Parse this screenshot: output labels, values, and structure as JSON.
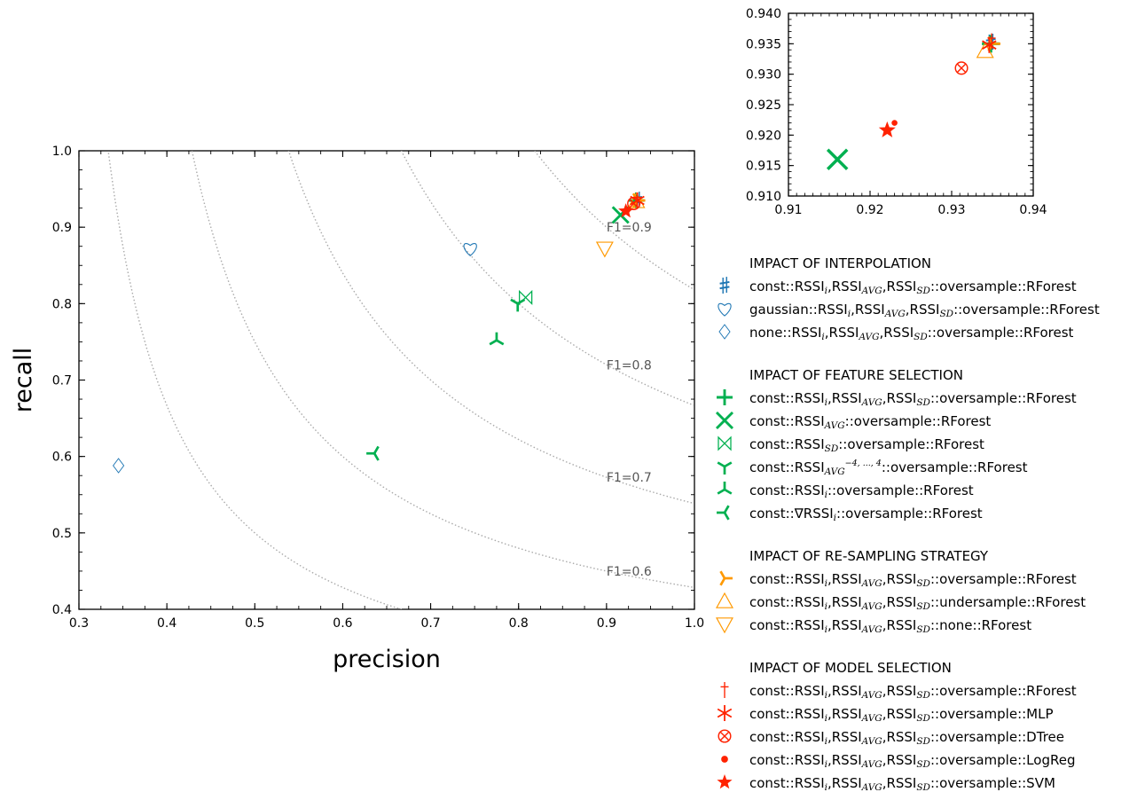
{
  "colors": {
    "interpolation": "#1f77b4",
    "feature": "#00b050",
    "resampling": "#ff9900",
    "model": "#ff2200",
    "contour": "#aaaaaa",
    "axis": "#000000"
  },
  "chart_data": [
    {
      "type": "scatter",
      "title": "",
      "xlabel": "precision",
      "ylabel": "recall",
      "xlim": [
        0.3,
        1.0
      ],
      "ylim": [
        0.4,
        1.0
      ],
      "xticks": [
        "0.3",
        "0.4",
        "0.5",
        "0.6",
        "0.7",
        "0.8",
        "0.9",
        "1.0"
      ],
      "yticks": [
        "0.4",
        "0.5",
        "0.6",
        "0.7",
        "0.8",
        "0.9",
        "1.0"
      ],
      "grid": false,
      "f1_contours": [
        {
          "f1": 0.6,
          "label": "F1=0.6"
        },
        {
          "f1": 0.7,
          "label": "F1=0.7"
        },
        {
          "f1": 0.8,
          "label": "F1=0.8"
        },
        {
          "f1": 0.9,
          "label": "F1=0.9"
        }
      ],
      "f1_extra_contours": [
        0.5
      ],
      "series": [
        {
          "group": "interpolation",
          "marker": "sharp",
          "x": 0.935,
          "y": 0.935
        },
        {
          "group": "interpolation",
          "marker": "heart",
          "x": 0.745,
          "y": 0.872
        },
        {
          "group": "interpolation",
          "marker": "diamond",
          "x": 0.345,
          "y": 0.588
        },
        {
          "group": "feature",
          "marker": "plus",
          "x": 0.934,
          "y": 0.935
        },
        {
          "group": "feature",
          "marker": "x",
          "x": 0.916,
          "y": 0.916
        },
        {
          "group": "feature",
          "marker": "bowtie",
          "x": 0.808,
          "y": 0.808
        },
        {
          "group": "feature",
          "marker": "tri_down",
          "x": 0.799,
          "y": 0.8
        },
        {
          "group": "feature",
          "marker": "tri_up",
          "x": 0.775,
          "y": 0.752
        },
        {
          "group": "feature",
          "marker": "tri_left",
          "x": 0.636,
          "y": 0.604
        },
        {
          "group": "resampling",
          "marker": "tri_right",
          "x": 0.935,
          "y": 0.935
        },
        {
          "group": "resampling",
          "marker": "triangle_up",
          "x": 0.934,
          "y": 0.934
        },
        {
          "group": "resampling",
          "marker": "triangle_down",
          "x": 0.898,
          "y": 0.872
        },
        {
          "group": "model",
          "marker": "dagger",
          "x": 0.935,
          "y": 0.935
        },
        {
          "group": "model",
          "marker": "asterisk",
          "x": 0.935,
          "y": 0.935
        },
        {
          "group": "model",
          "marker": "otimes",
          "x": 0.931,
          "y": 0.931
        },
        {
          "group": "model",
          "marker": "dot",
          "x": 0.923,
          "y": 0.922
        },
        {
          "group": "model",
          "marker": "star",
          "x": 0.922,
          "y": 0.921
        }
      ]
    },
    {
      "type": "scatter",
      "title": "",
      "xlabel": "",
      "ylabel": "",
      "xlim": [
        0.91,
        0.94
      ],
      "ylim": [
        0.91,
        0.94
      ],
      "xticks": [
        "0.91",
        "0.92",
        "0.93",
        "0.94"
      ],
      "yticks": [
        "0.910",
        "0.915",
        "0.920",
        "0.925",
        "0.930",
        "0.935",
        "0.940"
      ],
      "grid": false,
      "series": [
        {
          "group": "interpolation",
          "marker": "sharp",
          "x": 0.9348,
          "y": 0.9352
        },
        {
          "group": "feature",
          "marker": "plus",
          "x": 0.9348,
          "y": 0.935
        },
        {
          "group": "feature",
          "marker": "x",
          "x": 0.916,
          "y": 0.916
        },
        {
          "group": "resampling",
          "marker": "tri_right",
          "x": 0.935,
          "y": 0.935
        },
        {
          "group": "resampling",
          "marker": "triangle_up",
          "x": 0.9341,
          "y": 0.9338
        },
        {
          "group": "model",
          "marker": "dagger",
          "x": 0.9349,
          "y": 0.9354
        },
        {
          "group": "model",
          "marker": "asterisk",
          "x": 0.9346,
          "y": 0.9348
        },
        {
          "group": "model",
          "marker": "otimes",
          "x": 0.9312,
          "y": 0.931
        },
        {
          "group": "model",
          "marker": "dot",
          "x": 0.923,
          "y": 0.922
        },
        {
          "group": "model",
          "marker": "star",
          "x": 0.9221,
          "y": 0.9208
        }
      ]
    }
  ],
  "legend": {
    "groups": [
      {
        "title": "IMPACT OF INTERPOLATION",
        "group": "interpolation",
        "entries": [
          {
            "marker": "sharp",
            "parts": [
              [
                "const::RSSI",
                ""
              ],
              [
                "i",
                "sub"
              ],
              [
                ",RSSI",
                ""
              ],
              [
                "AVG",
                "sub"
              ],
              [
                ",RSSI",
                ""
              ],
              [
                "SD",
                "sub"
              ],
              [
                "::oversample::RForest",
                ""
              ]
            ]
          },
          {
            "marker": "heart",
            "parts": [
              [
                "gaussian::RSSI",
                ""
              ],
              [
                "i",
                "sub"
              ],
              [
                ",RSSI",
                ""
              ],
              [
                "AVG",
                "sub"
              ],
              [
                ",RSSI",
                ""
              ],
              [
                "SD",
                "sub"
              ],
              [
                "::oversample::RForest",
                ""
              ]
            ]
          },
          {
            "marker": "diamond",
            "parts": [
              [
                "none::RSSI",
                ""
              ],
              [
                "i",
                "sub"
              ],
              [
                ",RSSI",
                ""
              ],
              [
                "AVG",
                "sub"
              ],
              [
                ",RSSI",
                ""
              ],
              [
                "SD",
                "sub"
              ],
              [
                "::oversample::RForest",
                ""
              ]
            ]
          }
        ]
      },
      {
        "title": "IMPACT OF FEATURE SELECTION",
        "group": "feature",
        "entries": [
          {
            "marker": "plus",
            "parts": [
              [
                "const::RSSI",
                ""
              ],
              [
                "i",
                "sub"
              ],
              [
                ",RSSI",
                ""
              ],
              [
                "AVG",
                "sub"
              ],
              [
                ",RSSI",
                ""
              ],
              [
                "SD",
                "sub"
              ],
              [
                "::oversample::RForest",
                ""
              ]
            ]
          },
          {
            "marker": "x",
            "parts": [
              [
                "const::RSSI",
                ""
              ],
              [
                "AVG",
                "sub"
              ],
              [
                "::oversample::RForest",
                ""
              ]
            ]
          },
          {
            "marker": "bowtie",
            "parts": [
              [
                "const::RSSI",
                ""
              ],
              [
                "SD",
                "sub"
              ],
              [
                "::oversample::RForest",
                ""
              ]
            ]
          },
          {
            "marker": "tri_down",
            "parts": [
              [
                "const::RSSI",
                ""
              ],
              [
                "AVG",
                "sub"
              ],
              [
                "−4, ..., 4",
                "sup"
              ],
              [
                "::oversample::RForest",
                ""
              ]
            ]
          },
          {
            "marker": "tri_up",
            "parts": [
              [
                "const::RSSI",
                ""
              ],
              [
                "i",
                "sub"
              ],
              [
                "::oversample::RForest",
                ""
              ]
            ]
          },
          {
            "marker": "tri_left",
            "parts": [
              [
                "const::∇RSSI",
                ""
              ],
              [
                "i",
                "sub"
              ],
              [
                "::oversample::RForest",
                ""
              ]
            ]
          }
        ]
      },
      {
        "title": "IMPACT OF RE-SAMPLING STRATEGY",
        "group": "resampling",
        "entries": [
          {
            "marker": "tri_right",
            "parts": [
              [
                "const::RSSI",
                ""
              ],
              [
                "i",
                "sub"
              ],
              [
                ",RSSI",
                ""
              ],
              [
                "AVG",
                "sub"
              ],
              [
                ",RSSI",
                ""
              ],
              [
                "SD",
                "sub"
              ],
              [
                "::oversample::RForest",
                ""
              ]
            ]
          },
          {
            "marker": "triangle_up",
            "parts": [
              [
                "const::RSSI",
                ""
              ],
              [
                "i",
                "sub"
              ],
              [
                ",RSSI",
                ""
              ],
              [
                "AVG",
                "sub"
              ],
              [
                ",RSSI",
                ""
              ],
              [
                "SD",
                "sub"
              ],
              [
                "::undersample::RForest",
                ""
              ]
            ]
          },
          {
            "marker": "triangle_down",
            "parts": [
              [
                "const::RSSI",
                ""
              ],
              [
                "i",
                "sub"
              ],
              [
                ",RSSI",
                ""
              ],
              [
                "AVG",
                "sub"
              ],
              [
                ",RSSI",
                ""
              ],
              [
                "SD",
                "sub"
              ],
              [
                "::none::RForest",
                ""
              ]
            ]
          }
        ]
      },
      {
        "title": "IMPACT OF MODEL SELECTION",
        "group": "model",
        "entries": [
          {
            "marker": "dagger",
            "parts": [
              [
                "const::RSSI",
                ""
              ],
              [
                "i",
                "sub"
              ],
              [
                ",RSSI",
                ""
              ],
              [
                "AVG",
                "sub"
              ],
              [
                ",RSSI",
                ""
              ],
              [
                "SD",
                "sub"
              ],
              [
                "::oversample::RForest",
                ""
              ]
            ]
          },
          {
            "marker": "asterisk",
            "parts": [
              [
                "const::RSSI",
                ""
              ],
              [
                "i",
                "sub"
              ],
              [
                ",RSSI",
                ""
              ],
              [
                "AVG",
                "sub"
              ],
              [
                ",RSSI",
                ""
              ],
              [
                "SD",
                "sub"
              ],
              [
                "::oversample::MLP",
                ""
              ]
            ]
          },
          {
            "marker": "otimes",
            "parts": [
              [
                "const::RSSI",
                ""
              ],
              [
                "i",
                "sub"
              ],
              [
                ",RSSI",
                ""
              ],
              [
                "AVG",
                "sub"
              ],
              [
                ",RSSI",
                ""
              ],
              [
                "SD",
                "sub"
              ],
              [
                "::oversample::DTree",
                ""
              ]
            ]
          },
          {
            "marker": "dot",
            "parts": [
              [
                "const::RSSI",
                ""
              ],
              [
                "i",
                "sub"
              ],
              [
                ",RSSI",
                ""
              ],
              [
                "AVG",
                "sub"
              ],
              [
                ",RSSI",
                ""
              ],
              [
                "SD",
                "sub"
              ],
              [
                "::oversample::LogReg",
                ""
              ]
            ]
          },
          {
            "marker": "star",
            "parts": [
              [
                "const::RSSI",
                ""
              ],
              [
                "i",
                "sub"
              ],
              [
                ",RSSI",
                ""
              ],
              [
                "AVG",
                "sub"
              ],
              [
                ",RSSI",
                ""
              ],
              [
                "SD",
                "sub"
              ],
              [
                "::oversample::SVM",
                ""
              ]
            ]
          }
        ]
      }
    ]
  }
}
